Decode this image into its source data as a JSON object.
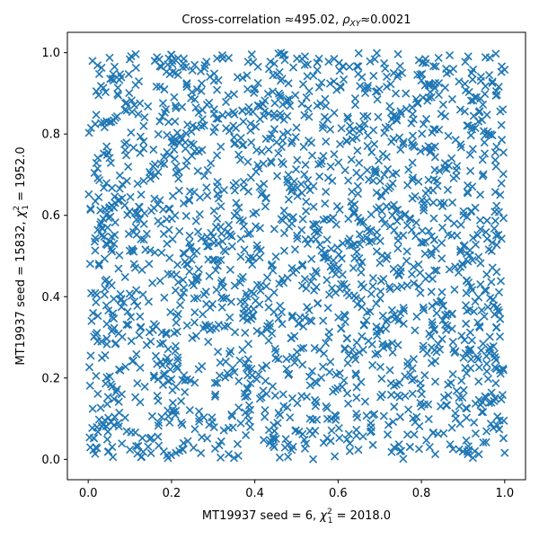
{
  "chart_data": {
    "type": "scatter",
    "title": "Cross-correlation ≈495.02, ρ_XY ≈ 0.0021",
    "title_parts": {
      "prefix": "Cross-correlation ",
      "approx1": "≈495.02, ",
      "rho": "ρ",
      "rho_sub": "XY",
      "approx2": "≈0.0021"
    },
    "xlabel": "MT19937 seed = 6, χ²₁ = 2018.0",
    "xlabel_parts": {
      "prefix": "MT19937 seed = 6, ",
      "chi": "χ",
      "sup": "2",
      "sub": "1",
      "suffix": " = 2018.0"
    },
    "ylabel": "MT19937 seed = 15832, χ²₁ = 1952.0",
    "ylabel_parts": {
      "prefix": "MT19937 seed = 15832, ",
      "chi": "χ",
      "sup": "2",
      "sub": "1",
      "suffix": " = 1952.0"
    },
    "xlim": [
      -0.05,
      1.05
    ],
    "ylim": [
      -0.05,
      1.05
    ],
    "xticks": [
      "0.0",
      "0.2",
      "0.4",
      "0.6",
      "0.8",
      "1.0"
    ],
    "yticks": [
      "0.0",
      "0.2",
      "0.4",
      "0.6",
      "0.8",
      "1.0"
    ],
    "marker": "x",
    "color": "#1f77b4",
    "n_points": 2000,
    "grid": false,
    "points": [
      [
        0.014,
        0.052
      ],
      [
        0.032,
        0.963
      ],
      [
        0.038,
        0.828
      ],
      [
        0.111,
        0.388
      ],
      [
        0.144,
        0.031
      ],
      [
        0.227,
        0.964
      ],
      [
        0.291,
        0.329
      ],
      [
        0.331,
        0.814
      ],
      [
        0.352,
        0.661
      ],
      [
        0.389,
        0.122
      ],
      [
        0.402,
        0.573
      ],
      [
        0.447,
        0.812
      ],
      [
        0.472,
        0.982
      ],
      [
        0.488,
        0.298
      ],
      [
        0.514,
        0.476
      ],
      [
        0.559,
        0.727
      ],
      [
        0.602,
        0.077
      ],
      [
        0.633,
        0.658
      ],
      [
        0.671,
        0.913
      ],
      [
        0.702,
        0.413
      ],
      [
        0.731,
        0.263
      ],
      [
        0.744,
        0.538
      ],
      [
        0.781,
        0.836
      ],
      [
        0.812,
        0.047
      ],
      [
        0.846,
        0.631
      ],
      [
        0.871,
        0.188
      ],
      [
        0.894,
        0.473
      ],
      [
        0.923,
        0.934
      ],
      [
        0.952,
        0.752
      ],
      [
        0.988,
        0.096
      ],
      [
        0.006,
        0.614
      ],
      [
        0.074,
        0.221
      ],
      [
        0.168,
        0.707
      ],
      [
        0.243,
        0.462
      ],
      [
        0.266,
        0.118
      ],
      [
        0.318,
        0.572
      ],
      [
        0.376,
        0.387
      ],
      [
        0.428,
        0.231
      ],
      [
        0.533,
        0.182
      ],
      [
        0.581,
        0.924
      ],
      [
        0.617,
        0.338
      ],
      [
        0.654,
        0.476
      ],
      [
        0.689,
        0.713
      ],
      [
        0.719,
        0.061
      ],
      [
        0.758,
        0.366
      ],
      [
        0.802,
        0.562
      ],
      [
        0.833,
        0.743
      ],
      [
        0.862,
        0.328
      ],
      [
        0.907,
        0.126
      ],
      [
        0.941,
        0.588
      ],
      [
        0.972,
        0.393
      ],
      [
        0.021,
        0.311
      ],
      [
        0.057,
        0.511
      ],
      [
        0.092,
        0.877
      ],
      [
        0.127,
        0.651
      ],
      [
        0.192,
        0.271
      ],
      [
        0.214,
        0.803
      ],
      [
        0.279,
        0.697
      ],
      [
        0.302,
        0.931
      ],
      [
        0.364,
        0.243
      ],
      [
        0.414,
        0.868
      ],
      [
        0.457,
        0.114
      ],
      [
        0.499,
        0.713
      ],
      [
        0.541,
        0.621
      ],
      [
        0.573,
        0.441
      ],
      [
        0.608,
        0.814
      ],
      [
        0.642,
        0.211
      ],
      [
        0.679,
        0.563
      ],
      [
        0.713,
        0.961
      ],
      [
        0.748,
        0.153
      ],
      [
        0.793,
        0.683
      ],
      [
        0.824,
        0.412
      ],
      [
        0.857,
        0.914
      ],
      [
        0.884,
        0.711
      ],
      [
        0.918,
        0.271
      ],
      [
        0.962,
        0.516
      ],
      [
        0.992,
        0.822
      ]
    ]
  }
}
